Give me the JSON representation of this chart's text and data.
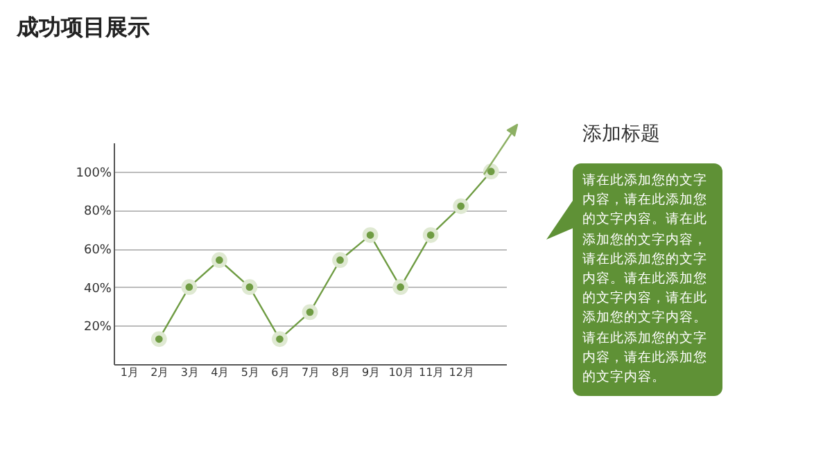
{
  "chart_data": {
    "type": "line",
    "title": "成功项目展示",
    "categories": [
      "1月",
      "2月",
      "3月",
      "4月",
      "5月",
      "6月",
      "7月",
      "8月",
      "9月",
      "10月",
      "11月",
      "12月",
      null
    ],
    "series": [
      {
        "color": "#6f9c43",
        "values": [
          null,
          13,
          40,
          54,
          40,
          13,
          27,
          54,
          67,
          40,
          67,
          82,
          100
        ]
      }
    ],
    "ylim": [
      0,
      115
    ],
    "yticks": [
      {
        "value": 20,
        "label": "20%"
      },
      {
        "value": 40,
        "label": "40%"
      },
      {
        "value": 60,
        "label": "60%"
      },
      {
        "value": 80,
        "label": "80%"
      },
      {
        "value": 100,
        "label": "100%"
      }
    ],
    "grid": "y",
    "marker": "circle",
    "line_style": "solid",
    "annotations": [
      "添加标题",
      "请在此添加您的文字内容，请在此添加您的文字内容。请在此添加您的文字内容，请在此添加您的文字内容。请在此添加您的文字内容，请在此添加您的文字内容。请在此添加您的文字内容，请在此添加您的文字内容。"
    ]
  }
}
